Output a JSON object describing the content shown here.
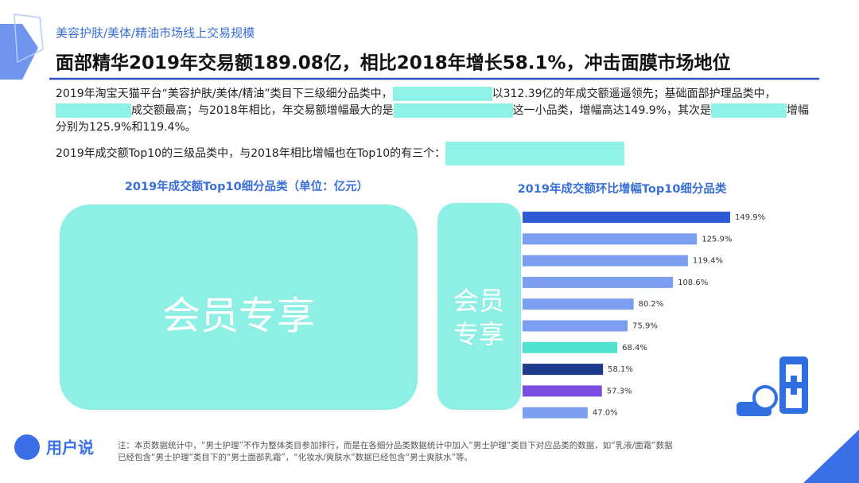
{
  "header": {
    "section": "美容护肤/美体/精油市场线上交易规模",
    "title": "面部精华2019年交易额189.08亿，相比2018年增长58.1%，冲击面膜市场地位"
  },
  "body": {
    "paragraph1": [
      "2019年淘宝天猫平台“美容护肤/美体/精油”类目下三级细分品类中，",
      "以312.39亿的年成交额遥遥领先；基础面部护理品类中，",
      "成交额最高；与2018年相比，年交易额增幅最大的是",
      "这一小品类，增幅高达149.9%，其次是",
      "增幅分别为125.9%和119.4%。"
    ],
    "paragraph2": "2019年成交额Top10的三级品类中，与2018年相比增幅也在Top10的有三个："
  },
  "left_chart": {
    "title": "2019年成交额Top10细分品类（单位：亿元）",
    "overlay": "会员专享"
  },
  "right_overlay": [
    "会员",
    "专享"
  ],
  "chart_data": {
    "type": "barh",
    "title": "2019年成交额环比增幅Top10细分品类",
    "categories": [
      null,
      null,
      null,
      null,
      null,
      null,
      null,
      null,
      null,
      null
    ],
    "values": [
      149.9,
      125.9,
      119.4,
      108.6,
      80.2,
      75.9,
      68.4,
      58.1,
      57.3,
      47.0
    ],
    "value_labels": [
      "149.9%",
      "125.9%",
      "119.4%",
      "108.6%",
      "80.2%",
      "75.9%",
      "68.4%",
      "58.1%",
      "57.3%",
      "47.0%"
    ],
    "colors": [
      "#2f5ad6",
      "#7b9ef0",
      "#7b9ef0",
      "#7b9ef0",
      "#7b9ef0",
      "#7b9ef0",
      "#4fe3cf",
      "#1e3a8c",
      "#7a4ee0",
      "#7b9ef0"
    ]
  },
  "footer": {
    "logo": "用户说",
    "note": [
      "注：本页数据统计中，“男士护理”不作为整体类目参加排行，而是在各细分品类数据统计中加入“男士护理”类目下对应品类的数据，如“乳液/面霜”数据",
      "已经包含“男士护理”类目下的“男士面部乳霜”，“化妆水/爽肤水”数据已经包含“男士爽肤水”等。"
    ]
  }
}
